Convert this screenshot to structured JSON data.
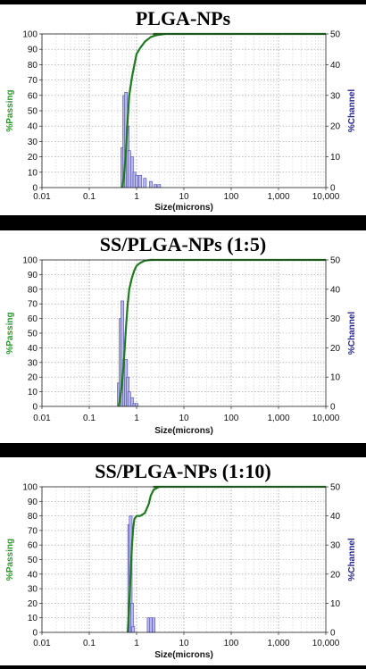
{
  "chart_data": [
    {
      "type": "bar+line",
      "title": "PLGA-NPs",
      "xlabel": "Size(microns)",
      "ylabel_left": "%Passing",
      "ylabel_right": "%Channel",
      "x_scale": "log",
      "xlim": [
        0.01,
        10000
      ],
      "ylim_left": [
        0,
        100
      ],
      "ylim_right": [
        0,
        50
      ],
      "x_ticks": [
        "0.01",
        "0.1",
        "1",
        "10",
        "100",
        "1,000",
        "10,000"
      ],
      "y_ticks_left": [
        "0",
        "10",
        "20",
        "30",
        "40",
        "50",
        "60",
        "70",
        "80",
        "90",
        "100"
      ],
      "y_ticks_right": [
        "0",
        "10",
        "20",
        "30",
        "40",
        "50"
      ],
      "grid": true,
      "colors": {
        "passing": "#1f7a1f",
        "channel_fill": "#b8b8ec",
        "channel_edge": "#4a4ab0",
        "left_axis_label": "#2a9a2a",
        "right_axis_label": "#2a2a8a"
      },
      "series": [
        {
          "name": "%Passing",
          "axis": "left",
          "x": [
            0.5,
            0.55,
            0.6,
            0.65,
            0.7,
            0.8,
            0.9,
            1.0,
            1.2,
            1.5,
            2.0,
            2.5,
            3.0,
            4.0
          ],
          "values": [
            0,
            10,
            25,
            45,
            60,
            72,
            80,
            87,
            91,
            95,
            98,
            99,
            99.5,
            100
          ]
        },
        {
          "name": "%Channel",
          "axis": "right",
          "x": [
            0.5,
            0.55,
            0.6,
            0.65,
            0.7,
            0.8,
            0.9,
            1.0,
            1.2,
            1.5,
            2.0,
            2.5,
            3.0
          ],
          "values": [
            13,
            30,
            31,
            20,
            12,
            10,
            5,
            4,
            4,
            3,
            2,
            1,
            1
          ]
        }
      ]
    },
    {
      "type": "bar+line",
      "title": "SS/PLGA-NPs (1:5)",
      "xlabel": "Size(microns)",
      "ylabel_left": "%Passing",
      "ylabel_right": "%Channel",
      "x_scale": "log",
      "xlim": [
        0.01,
        10000
      ],
      "ylim_left": [
        0,
        100
      ],
      "ylim_right": [
        0,
        50
      ],
      "x_ticks": [
        "0.01",
        "0.1",
        "1",
        "10",
        "100",
        "1,000",
        "10,000"
      ],
      "y_ticks_left": [
        "0",
        "10",
        "20",
        "30",
        "40",
        "50",
        "60",
        "70",
        "80",
        "90",
        "100"
      ],
      "y_ticks_right": [
        "0",
        "10",
        "20",
        "30",
        "40",
        "50"
      ],
      "grid": true,
      "colors": {
        "passing": "#1f7a1f",
        "channel_fill": "#b8b8ec",
        "channel_edge": "#4a4ab0",
        "left_axis_label": "#2a9a2a",
        "right_axis_label": "#2a2a8a"
      },
      "series": [
        {
          "name": "%Passing",
          "axis": "left",
          "x": [
            0.42,
            0.46,
            0.5,
            0.55,
            0.6,
            0.65,
            0.7,
            0.8,
            0.9,
            1.0,
            1.2,
            1.5,
            2.0
          ],
          "values": [
            0,
            8,
            18,
            35,
            55,
            70,
            80,
            88,
            93,
            96,
            98,
            99.5,
            100
          ]
        },
        {
          "name": "%Channel",
          "axis": "right",
          "x": [
            0.42,
            0.46,
            0.5,
            0.55,
            0.6,
            0.65,
            0.7,
            0.8,
            0.9,
            1.0
          ],
          "values": [
            8,
            30,
            36,
            16,
            16,
            10,
            5,
            3,
            1,
            1
          ]
        }
      ]
    },
    {
      "type": "bar+line",
      "title": "SS/PLGA-NPs (1:10)",
      "xlabel": "Size(microns)",
      "ylabel_left": "%Passing",
      "ylabel_right": "%Channel",
      "x_scale": "log",
      "xlim": [
        0.01,
        10000
      ],
      "ylim_left": [
        0,
        100
      ],
      "ylim_right": [
        0,
        50
      ],
      "x_ticks": [
        "0.01",
        "0.1",
        "1",
        "10",
        "100",
        "1,000",
        "10,000"
      ],
      "y_ticks_left": [
        "0",
        "10",
        "20",
        "30",
        "40",
        "50",
        "60",
        "70",
        "80",
        "90",
        "100"
      ],
      "y_ticks_right": [
        "0",
        "10",
        "20",
        "30",
        "40",
        "50"
      ],
      "grid": true,
      "colors": {
        "passing": "#1f7a1f",
        "channel_fill": "#b8b8ec",
        "channel_edge": "#4a4ab0",
        "left_axis_label": "#2a9a2a",
        "right_axis_label": "#2a2a8a"
      },
      "series": [
        {
          "name": "%Passing",
          "axis": "left",
          "x": [
            0.65,
            0.7,
            0.75,
            0.8,
            0.85,
            0.9,
            1.0,
            1.2,
            1.5,
            1.8,
            2.0,
            2.3,
            3.0
          ],
          "values": [
            0,
            20,
            40,
            60,
            72,
            78,
            80,
            80,
            82,
            88,
            94,
            98,
            100
          ]
        },
        {
          "name": "%Channel",
          "axis": "right",
          "x": [
            0.7,
            0.75,
            0.8,
            0.85,
            1.8,
            2.0,
            2.3
          ],
          "values": [
            37,
            40,
            10,
            2,
            5,
            5,
            5
          ]
        }
      ]
    }
  ]
}
